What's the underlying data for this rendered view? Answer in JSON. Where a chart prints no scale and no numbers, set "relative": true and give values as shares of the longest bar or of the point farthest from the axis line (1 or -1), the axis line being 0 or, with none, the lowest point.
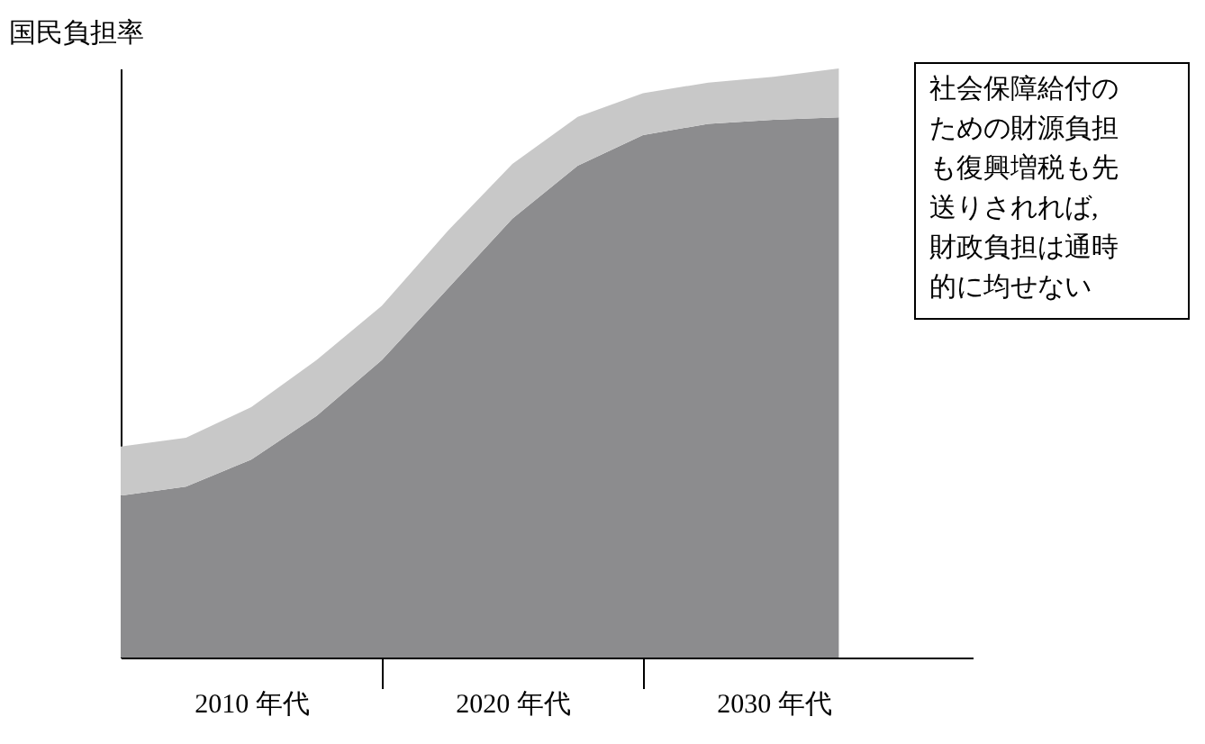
{
  "chart_data": {
    "type": "area",
    "stacked": true,
    "relative": true,
    "ylabel": "国民負担率",
    "categories": [
      null,
      null,
      "2010 年代",
      null,
      null,
      null,
      "2020 年代",
      null,
      null,
      null,
      "2030 年代",
      null
    ],
    "series": [
      {
        "color": "#8c8c8e",
        "values": [
          0.275,
          0.29,
          0.336,
          0.41,
          0.505,
          0.625,
          0.745,
          0.835,
          0.887,
          0.906,
          0.913,
          0.917
        ]
      },
      {
        "color": "#c8c8c8",
        "values": [
          0.083,
          0.083,
          0.089,
          0.095,
          0.092,
          0.098,
          0.093,
          0.083,
          0.071,
          0.07,
          0.073,
          0.083
        ]
      }
    ],
    "annotations": [
      "社会保障給付のための財源負担も復興増税も先送りされれば,財政負担は通時的に均せない"
    ],
    "legend": false,
    "tick_labels": "x"
  }
}
